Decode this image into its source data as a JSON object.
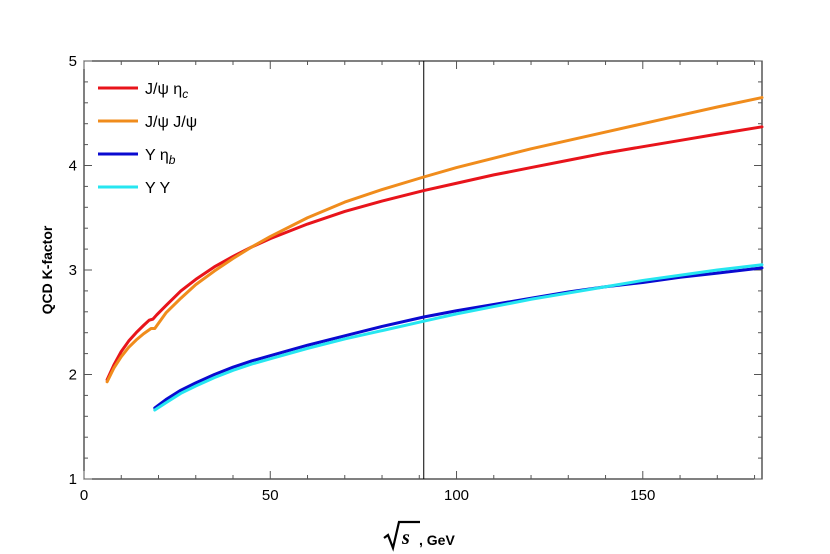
{
  "chart_data": {
    "type": "line",
    "title": "",
    "xlabel_root": "s",
    "xlabel_suffix": ", GeV",
    "ylabel": "QCD K-factor",
    "xlim": [
      0,
      182
    ],
    "ylim": [
      1,
      5
    ],
    "xticks": [
      0,
      50,
      100,
      150
    ],
    "yticks": [
      1,
      2,
      3,
      4,
      5
    ],
    "xtick_labels": [
      "0",
      "50",
      "100",
      "150"
    ],
    "ytick_labels": [
      "1",
      "2",
      "3",
      "4",
      "5"
    ],
    "vertical_line_x": 91.2,
    "grid": false,
    "legend_position": "top-left",
    "series": [
      {
        "name_main": "J/ψ η",
        "name_sub": "c",
        "color": "#e8141b",
        "x": [
          6.2,
          8,
          10,
          12,
          14,
          16,
          17.5,
          18.5,
          19.5,
          22,
          26,
          30,
          35,
          40,
          45,
          50,
          60,
          70,
          80,
          91.2,
          100,
          110,
          120,
          130,
          140,
          150,
          160,
          170,
          182
        ],
        "y": [
          1.95,
          2.09,
          2.22,
          2.32,
          2.4,
          2.47,
          2.52,
          2.53,
          2.57,
          2.66,
          2.8,
          2.91,
          3.03,
          3.13,
          3.22,
          3.3,
          3.44,
          3.56,
          3.66,
          3.76,
          3.83,
          3.91,
          3.98,
          4.05,
          4.12,
          4.18,
          4.24,
          4.3,
          4.37
        ]
      },
      {
        "name_main": "J/ψ J/ψ",
        "name_sub": "",
        "color": "#f08c1c",
        "x": [
          6.2,
          8,
          10,
          12,
          14,
          16,
          18,
          19,
          20,
          22,
          26,
          30,
          35,
          40,
          45,
          50,
          60,
          70,
          80,
          91.2,
          100,
          110,
          120,
          130,
          140,
          150,
          160,
          170,
          182
        ],
        "y": [
          1.93,
          2.06,
          2.17,
          2.26,
          2.33,
          2.39,
          2.44,
          2.44,
          2.49,
          2.59,
          2.73,
          2.86,
          2.99,
          3.11,
          3.22,
          3.32,
          3.5,
          3.65,
          3.77,
          3.89,
          3.98,
          4.07,
          4.16,
          4.24,
          4.32,
          4.4,
          4.48,
          4.56,
          4.65
        ]
      },
      {
        "name_main": "Υ η",
        "name_sub": "b",
        "color": "#0a0ad0",
        "x": [
          19,
          22,
          26,
          30,
          35,
          40,
          45,
          50,
          60,
          70,
          80,
          91.2,
          100,
          110,
          120,
          130,
          140,
          150,
          160,
          170,
          182
        ],
        "y": [
          1.68,
          1.76,
          1.85,
          1.92,
          2.0,
          2.07,
          2.13,
          2.18,
          2.28,
          2.37,
          2.46,
          2.55,
          2.61,
          2.67,
          2.73,
          2.79,
          2.84,
          2.88,
          2.93,
          2.97,
          3.02
        ]
      },
      {
        "name_main": "Υ Υ",
        "name_sub": "",
        "color": "#26e6f0",
        "x": [
          19,
          22,
          26,
          30,
          35,
          40,
          45,
          50,
          60,
          70,
          80,
          91.2,
          100,
          110,
          120,
          130,
          140,
          150,
          160,
          170,
          182
        ],
        "y": [
          1.66,
          1.73,
          1.82,
          1.89,
          1.97,
          2.04,
          2.1,
          2.15,
          2.25,
          2.34,
          2.42,
          2.51,
          2.58,
          2.65,
          2.72,
          2.78,
          2.84,
          2.9,
          2.95,
          3.0,
          3.05
        ]
      }
    ]
  }
}
